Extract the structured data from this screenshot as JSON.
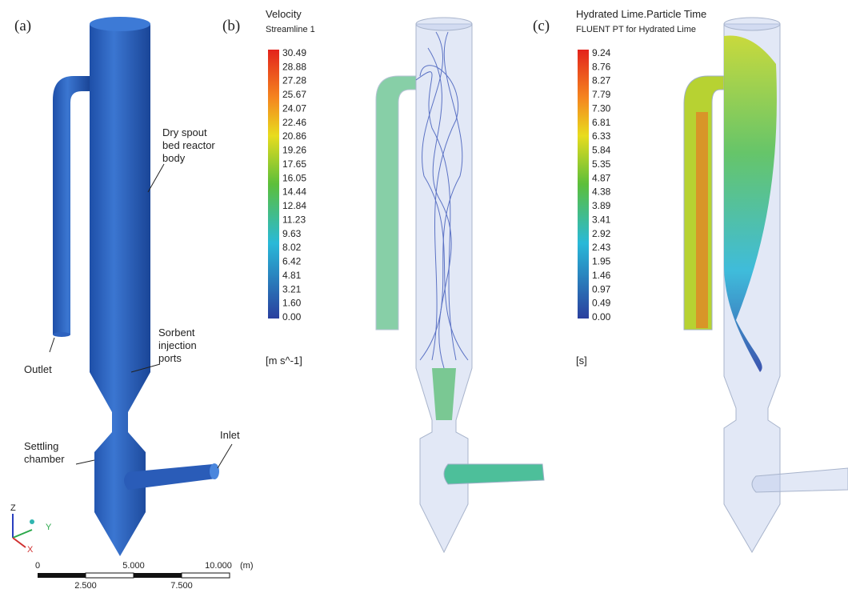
{
  "figure": {
    "panel_a": {
      "label": "(a)",
      "annotations": {
        "reactor_body": [
          "Dry spout",
          "bed reactor",
          "body"
        ],
        "outlet": "Outlet",
        "sorbent_ports": [
          "Sorbent",
          "injection",
          "ports"
        ],
        "settling_chamber": [
          "Settling",
          "chamber"
        ],
        "inlet": "Inlet"
      },
      "axes": {
        "z": "Z",
        "y": "Y",
        "x": "X"
      },
      "scale_bar": {
        "top_labels": [
          "0",
          "5.000",
          "10.000",
          "(m)"
        ],
        "bottom_labels": [
          "2.500",
          "7.500"
        ]
      }
    },
    "panel_b": {
      "label": "(b)",
      "title": "Velocity",
      "subtitle": "Streamline 1",
      "colorbar_ticks": [
        "30.49",
        "28.88",
        "27.28",
        "25.67",
        "24.07",
        "22.46",
        "20.86",
        "19.26",
        "17.65",
        "16.05",
        "14.44",
        "12.84",
        "11.23",
        "9.63",
        "8.02",
        "6.42",
        "4.81",
        "3.21",
        "1.60",
        "0.00"
      ],
      "unit": "[m s^-1]"
    },
    "panel_c": {
      "label": "(c)",
      "title": "Hydrated Lime.Particle Time",
      "subtitle": "FLUENT PT for Hydrated Lime",
      "colorbar_ticks": [
        "9.24",
        "8.76",
        "8.27",
        "7.79",
        "7.30",
        "6.81",
        "6.33",
        "5.84",
        "5.35",
        "4.87",
        "4.38",
        "3.89",
        "3.41",
        "2.92",
        "2.43",
        "1.95",
        "1.46",
        "0.97",
        "0.49",
        "0.00"
      ],
      "unit": "[s]"
    }
  }
}
